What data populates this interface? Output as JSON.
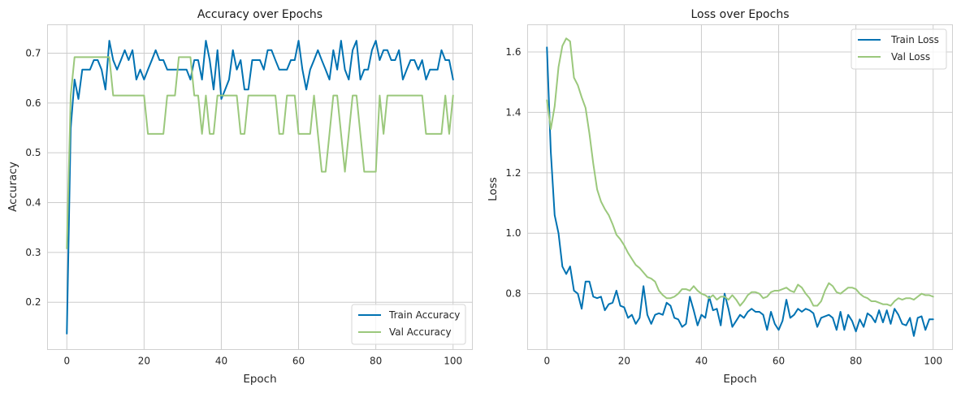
{
  "chart_data": [
    {
      "type": "line",
      "title": "Accuracy over Epochs",
      "xlabel": "Epoch",
      "ylabel": "Accuracy",
      "xlim": [
        -5,
        105
      ],
      "ylim": [
        0.105,
        0.757
      ],
      "xticks": [
        0,
        20,
        40,
        60,
        80,
        100
      ],
      "xtick_labels": [
        "0",
        "20",
        "40",
        "60",
        "80",
        "100"
      ],
      "yticks": [
        0.2,
        0.3,
        0.4,
        0.5,
        0.6,
        0.7
      ],
      "ytick_labels": [
        "0.2",
        "0.3",
        "0.4",
        "0.5",
        "0.6",
        "0.7"
      ],
      "grid": true,
      "legend_position": "bottom-right",
      "series": [
        {
          "name": "Train Accuracy",
          "color": "#0072b2",
          "values": [
            0.137,
            0.549,
            0.647,
            0.608,
            0.667,
            0.667,
            0.667,
            0.686,
            0.686,
            0.667,
            0.627,
            0.725,
            0.686,
            0.667,
            0.686,
            0.706,
            0.686,
            0.706,
            0.647,
            0.667,
            0.647,
            0.667,
            0.686,
            0.706,
            0.686,
            0.686,
            0.667,
            0.667,
            0.667,
            0.667,
            0.667,
            0.667,
            0.647,
            0.686,
            0.686,
            0.647,
            0.725,
            0.686,
            0.627,
            0.706,
            0.608,
            0.627,
            0.647,
            0.706,
            0.667,
            0.686,
            0.627,
            0.627,
            0.686,
            0.686,
            0.686,
            0.667,
            0.706,
            0.706,
            0.686,
            0.667,
            0.667,
            0.667,
            0.686,
            0.686,
            0.725,
            0.667,
            0.627,
            0.667,
            0.686,
            0.706,
            0.686,
            0.667,
            0.647,
            0.706,
            0.667,
            0.725,
            0.667,
            0.647,
            0.706,
            0.725,
            0.647,
            0.667,
            0.667,
            0.706,
            0.725,
            0.686,
            0.706,
            0.706,
            0.686,
            0.686,
            0.706,
            0.647,
            0.667,
            0.686,
            0.686,
            0.667,
            0.686,
            0.647,
            0.667,
            0.667,
            0.667,
            0.706,
            0.686,
            0.686,
            0.647
          ]
        },
        {
          "name": "Val Accuracy",
          "color": "#9bc87c",
          "values": [
            0.308,
            0.615,
            0.692,
            0.692,
            0.692,
            0.692,
            0.692,
            0.692,
            0.692,
            0.692,
            0.692,
            0.692,
            0.615,
            0.615,
            0.615,
            0.615,
            0.615,
            0.615,
            0.615,
            0.615,
            0.615,
            0.538,
            0.538,
            0.538,
            0.538,
            0.538,
            0.615,
            0.615,
            0.615,
            0.692,
            0.692,
            0.692,
            0.692,
            0.615,
            0.615,
            0.538,
            0.615,
            0.538,
            0.538,
            0.615,
            0.615,
            0.615,
            0.615,
            0.615,
            0.615,
            0.538,
            0.538,
            0.615,
            0.615,
            0.615,
            0.615,
            0.615,
            0.615,
            0.615,
            0.615,
            0.538,
            0.538,
            0.615,
            0.615,
            0.615,
            0.538,
            0.538,
            0.538,
            0.538,
            0.615,
            0.538,
            0.462,
            0.462,
            0.538,
            0.615,
            0.615,
            0.538,
            0.462,
            0.538,
            0.615,
            0.615,
            0.538,
            0.462,
            0.462,
            0.462,
            0.462,
            0.615,
            0.538,
            0.615,
            0.615,
            0.615,
            0.615,
            0.615,
            0.615,
            0.615,
            0.615,
            0.615,
            0.615,
            0.538,
            0.538,
            0.538,
            0.538,
            0.538,
            0.615,
            0.538,
            0.615
          ]
        }
      ]
    },
    {
      "type": "line",
      "title": "Loss over Epochs",
      "xlabel": "Epoch",
      "ylabel": "Loss",
      "xlim": [
        -5,
        105
      ],
      "ylim": [
        0.615,
        1.69
      ],
      "xticks": [
        0,
        20,
        40,
        60,
        80,
        100
      ],
      "xtick_labels": [
        "0",
        "20",
        "40",
        "60",
        "80",
        "100"
      ],
      "yticks": [
        0.8,
        1.0,
        1.2,
        1.4,
        1.6
      ],
      "ytick_labels": [
        "0.8",
        "1.0",
        "1.2",
        "1.4",
        "1.6"
      ],
      "grid": true,
      "legend_position": "top-right",
      "series": [
        {
          "name": "Train Loss",
          "color": "#0072b2",
          "values": [
            1.615,
            1.27,
            1.06,
            1.0,
            0.89,
            0.865,
            0.89,
            0.81,
            0.8,
            0.75,
            0.84,
            0.84,
            0.79,
            0.785,
            0.79,
            0.745,
            0.765,
            0.77,
            0.81,
            0.76,
            0.755,
            0.72,
            0.73,
            0.7,
            0.72,
            0.825,
            0.73,
            0.7,
            0.73,
            0.735,
            0.73,
            0.77,
            0.76,
            0.72,
            0.715,
            0.69,
            0.7,
            0.79,
            0.745,
            0.695,
            0.73,
            0.72,
            0.79,
            0.745,
            0.75,
            0.695,
            0.8,
            0.75,
            0.69,
            0.71,
            0.73,
            0.72,
            0.74,
            0.75,
            0.74,
            0.74,
            0.73,
            0.68,
            0.74,
            0.7,
            0.68,
            0.71,
            0.78,
            0.72,
            0.73,
            0.75,
            0.74,
            0.75,
            0.745,
            0.735,
            0.69,
            0.72,
            0.725,
            0.73,
            0.72,
            0.68,
            0.74,
            0.68,
            0.73,
            0.71,
            0.675,
            0.715,
            0.69,
            0.735,
            0.725,
            0.705,
            0.745,
            0.705,
            0.745,
            0.7,
            0.75,
            0.73,
            0.7,
            0.695,
            0.72,
            0.66,
            0.72,
            0.725,
            0.68,
            0.715,
            0.715
          ]
        },
        {
          "name": "Val Loss",
          "color": "#9bc87c",
          "values": [
            1.44,
            1.345,
            1.42,
            1.55,
            1.62,
            1.645,
            1.635,
            1.515,
            1.49,
            1.45,
            1.415,
            1.33,
            1.23,
            1.145,
            1.105,
            1.08,
            1.06,
            1.03,
            0.995,
            0.98,
            0.96,
            0.935,
            0.915,
            0.895,
            0.885,
            0.87,
            0.855,
            0.85,
            0.84,
            0.81,
            0.795,
            0.785,
            0.785,
            0.79,
            0.8,
            0.815,
            0.815,
            0.81,
            0.825,
            0.81,
            0.8,
            0.795,
            0.785,
            0.795,
            0.78,
            0.79,
            0.79,
            0.78,
            0.795,
            0.78,
            0.76,
            0.775,
            0.795,
            0.805,
            0.805,
            0.8,
            0.785,
            0.79,
            0.805,
            0.81,
            0.81,
            0.815,
            0.82,
            0.81,
            0.805,
            0.83,
            0.82,
            0.8,
            0.785,
            0.76,
            0.76,
            0.775,
            0.81,
            0.835,
            0.825,
            0.805,
            0.8,
            0.81,
            0.82,
            0.82,
            0.815,
            0.8,
            0.79,
            0.785,
            0.775,
            0.775,
            0.77,
            0.765,
            0.765,
            0.76,
            0.775,
            0.785,
            0.78,
            0.785,
            0.785,
            0.78,
            0.79,
            0.8,
            0.795,
            0.795,
            0.79
          ]
        }
      ]
    }
  ]
}
